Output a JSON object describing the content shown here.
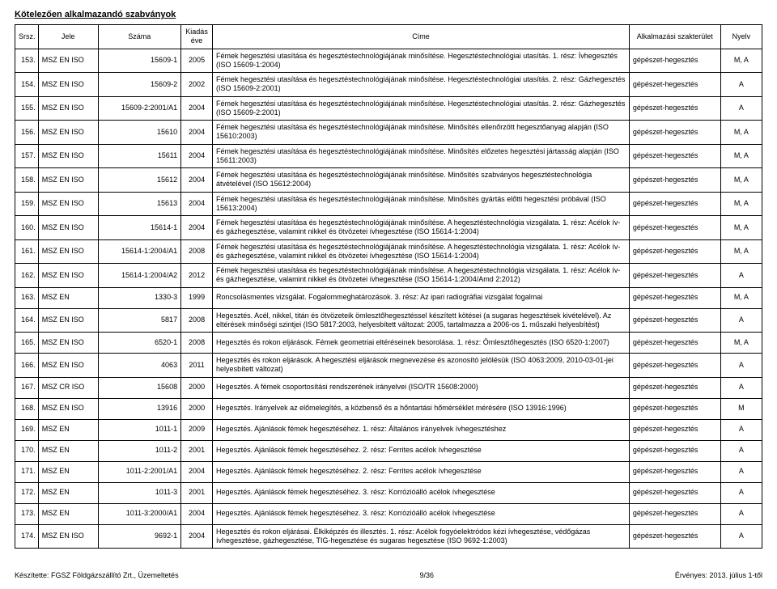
{
  "page_title": "Kötelezően alkalmazandó szabványok",
  "columns": {
    "srsz": "Srsz.",
    "jele": "Jele",
    "szama": "Száma",
    "ev": "Kiadás éve",
    "cime": "Címe",
    "szak": "Alkalmazási szakterület",
    "nyelv": "Nyelv"
  },
  "rows": [
    {
      "srsz": "153.",
      "jele": "MSZ EN ISO",
      "szama": "15609-1",
      "ev": "2005",
      "cime": "Fémek hegesztési utasítása és hegesztéstechnológiájának minősítése. Hegesztéstechnológiai utasítás. 1. rész: Ívhegesztés (ISO 15609-1:2004)",
      "szak": "gépészet-hegesztés",
      "nyelv": "M, A"
    },
    {
      "srsz": "154.",
      "jele": "MSZ EN ISO",
      "szama": "15609-2",
      "ev": "2002",
      "cime": "Fémek hegesztési utasítása és hegesztéstechnológiájának minősítése. Hegesztéstechnológiai utasítás. 2. rész: Gázhegesztés (ISO 15609-2:2001)",
      "szak": "gépészet-hegesztés",
      "nyelv": "A"
    },
    {
      "srsz": "155.",
      "jele": "MSZ EN ISO",
      "szama": "15609-2:2001/A1",
      "ev": "2004",
      "cime": "Fémek hegesztési utasítása és hegesztéstechnológiájának minősítése. Hegesztéstechnológiai utasítás. 2. rész: Gázhegesztés (ISO 15609-2:2001)",
      "szak": "gépészet-hegesztés",
      "nyelv": "A"
    },
    {
      "srsz": "156.",
      "jele": "MSZ EN ISO",
      "szama": "15610",
      "ev": "2004",
      "cime": "Fémek hegesztési utasítása és hegesztéstechnológiájának minősítése. Minősítés ellenőrzött hegesztőanyag alapján (ISO 15610:2003)",
      "szak": "gépészet-hegesztés",
      "nyelv": "M, A"
    },
    {
      "srsz": "157.",
      "jele": "MSZ EN ISO",
      "szama": "15611",
      "ev": "2004",
      "cime": "Fémek hegesztési utasítása és hegesztéstechnológiájának minősítése. Minősítés előzetes hegesztési jártasság alapján (ISO 15611:2003)",
      "szak": "gépészet-hegesztés",
      "nyelv": "M, A"
    },
    {
      "srsz": "158.",
      "jele": "MSZ EN ISO",
      "szama": "15612",
      "ev": "2004",
      "cime": "Fémek hegesztési utasítása és hegesztéstechnológiájának minősítése. Minősítés szabványos hegesztéstechnológia átvételével (ISO 15612:2004)",
      "szak": "gépészet-hegesztés",
      "nyelv": "M, A"
    },
    {
      "srsz": "159.",
      "jele": "MSZ EN ISO",
      "szama": "15613",
      "ev": "2004",
      "cime": "Fémek hegesztési utasítása és hegesztéstechnológiájának minősítése. Minősítés gyártás előtti hegesztési próbával (ISO 15613:2004)",
      "szak": "gépészet-hegesztés",
      "nyelv": "M, A"
    },
    {
      "srsz": "160.",
      "jele": "MSZ EN ISO",
      "szama": "15614-1",
      "ev": "2004",
      "cime": "Fémek hegesztési utasítása és hegesztéstechnológiájának minősítése. A hegesztéstechnológia vizsgálata. 1. rész: Acélok ív- és gázhegesztése, valamint nikkel és ötvözetei ívhegesztése (ISO 15614-1:2004)",
      "szak": "gépészet-hegesztés",
      "nyelv": "M, A"
    },
    {
      "srsz": "161.",
      "jele": "MSZ EN ISO",
      "szama": "15614-1:2004/A1",
      "ev": "2008",
      "cime": "Fémek hegesztési utasítása és hegesztéstechnológiájának minősítése. A hegesztéstechnológia vizsgálata. 1. rész: Acélok ív- és gázhegesztése, valamint nikkel és ötvözetei ívhegesztése (ISO 15614-1:2004)",
      "szak": "gépészet-hegesztés",
      "nyelv": "M, A"
    },
    {
      "srsz": "162.",
      "jele": "MSZ EN ISO",
      "szama": "15614-1:2004/A2",
      "ev": "2012",
      "cime": "Fémek hegesztési utasítása és hegesztéstechnológiájának minősítése. A hegesztéstechnológia vizsgálata. 1. rész: Acélok ív- és gázhegesztése, valamint nikkel és ötvözetei ívhegesztése (ISO 15614-1:2004/Amd 2:2012)",
      "szak": "gépészet-hegesztés",
      "nyelv": "A"
    },
    {
      "srsz": "163.",
      "jele": "MSZ EN",
      "szama": "1330-3",
      "ev": "1999",
      "cime": "Roncsolásmentes vizsgálat. Fogalommeghatározások. 3. rész: Az ipari radiográfiai vizsgálat fogalmai",
      "szak": "gépészet-hegesztés",
      "nyelv": "M, A"
    },
    {
      "srsz": "164.",
      "jele": "MSZ EN ISO",
      "szama": "5817",
      "ev": "2008",
      "cime": "Hegesztés. Acél, nikkel, titán és ötvözeteik ömlesztőhegesztéssel készített kötései (a sugaras hegesztések kivételével). Az eltérések minőségi szintjei (ISO 5817:2003, helyesbített változat: 2005, tartalmazza a 2006-os 1. műszaki helyesbítést)",
      "szak": "gépészet-hegesztés",
      "nyelv": "A"
    },
    {
      "srsz": "165.",
      "jele": "MSZ EN ISO",
      "szama": "6520-1",
      "ev": "2008",
      "cime": "Hegesztés és rokon eljárások. Fémek geometriai eltéréseinek besorolása. 1. rész: Ömlesztőhegesztés (ISO 6520-1:2007)",
      "szak": "gépészet-hegesztés",
      "nyelv": "M, A"
    },
    {
      "srsz": "166.",
      "jele": "MSZ EN ISO",
      "szama": "4063",
      "ev": "2011",
      "cime": "Hegesztés és rokon eljárások. A hegesztési eljárások megnevezése és azonosító jelölésük (ISO 4063:2009, 2010-03-01-jei helyesbített változat)",
      "szak": "gépészet-hegesztés",
      "nyelv": "A"
    },
    {
      "srsz": "167.",
      "jele": "MSZ CR ISO",
      "szama": "15608",
      "ev": "2000",
      "cime": "Hegesztés. A fémek csoportosítási rendszerének irányelvei (ISO/TR 15608:2000)",
      "szak": "gépészet-hegesztés",
      "nyelv": "A"
    },
    {
      "srsz": "168.",
      "jele": "MSZ EN ISO",
      "szama": "13916",
      "ev": "2000",
      "cime": "Hegesztés. Irányelvek az előmelegítés, a közbenső és a hőntartási hőmérséklet mérésére (ISO 13916:1996)",
      "szak": "gépészet-hegesztés",
      "nyelv": "M"
    },
    {
      "srsz": "169.",
      "jele": "MSZ EN",
      "szama": "1011-1",
      "ev": "2009",
      "cime": "Hegesztés. Ajánlások fémek hegesztéséhez. 1. rész: Általános irányelvek ívhegesztéshez",
      "szak": "gépészet-hegesztés",
      "nyelv": "A"
    },
    {
      "srsz": "170.",
      "jele": "MSZ EN",
      "szama": "1011-2",
      "ev": "2001",
      "cime": "Hegesztés. Ajánlások fémek hegesztéséhez. 2. rész: Ferrites acélok ívhegesztése",
      "szak": "gépészet-hegesztés",
      "nyelv": "A"
    },
    {
      "srsz": "171.",
      "jele": "MSZ EN",
      "szama": "1011-2:2001/A1",
      "ev": "2004",
      "cime": "Hegesztés. Ajánlások fémek hegesztéséhez. 2. rész: Ferrites acélok ívhegesztése",
      "szak": "gépészet-hegesztés",
      "nyelv": "A"
    },
    {
      "srsz": "172.",
      "jele": "MSZ EN",
      "szama": "1011-3",
      "ev": "2001",
      "cime": "Hegesztés. Ajánlások fémek hegesztéséhez. 3. rész: Korrózióálló acélok ívhegesztése",
      "szak": "gépészet-hegesztés",
      "nyelv": "A"
    },
    {
      "srsz": "173.",
      "jele": "MSZ EN",
      "szama": "1011-3:2000/A1",
      "ev": "2004",
      "cime": "Hegesztés. Ajánlások fémek hegesztéséhez. 3. rész: Korrózióálló acélok ívhegesztése",
      "szak": "gépészet-hegesztés",
      "nyelv": "A"
    },
    {
      "srsz": "174.",
      "jele": "MSZ EN ISO",
      "szama": "9692-1",
      "ev": "2004",
      "cime": "Hegesztés és rokon eljárásai. Élkiképzés és illesztés. 1. rész: Acélok fogyóelektródos kézi ívhegesztése, védőgázas ívhegesztése, gázhegesztése, TIG-hegesztése és sugaras hegesztése (ISO 9692-1:2003)",
      "szak": "gépészet-hegesztés",
      "nyelv": "A"
    }
  ],
  "footer": {
    "left": "Készítette: FGSZ Földgázszállító Zrt., Üzemeltetés",
    "center": "9/36",
    "right": "Érvényes: 2013. július 1-től"
  }
}
